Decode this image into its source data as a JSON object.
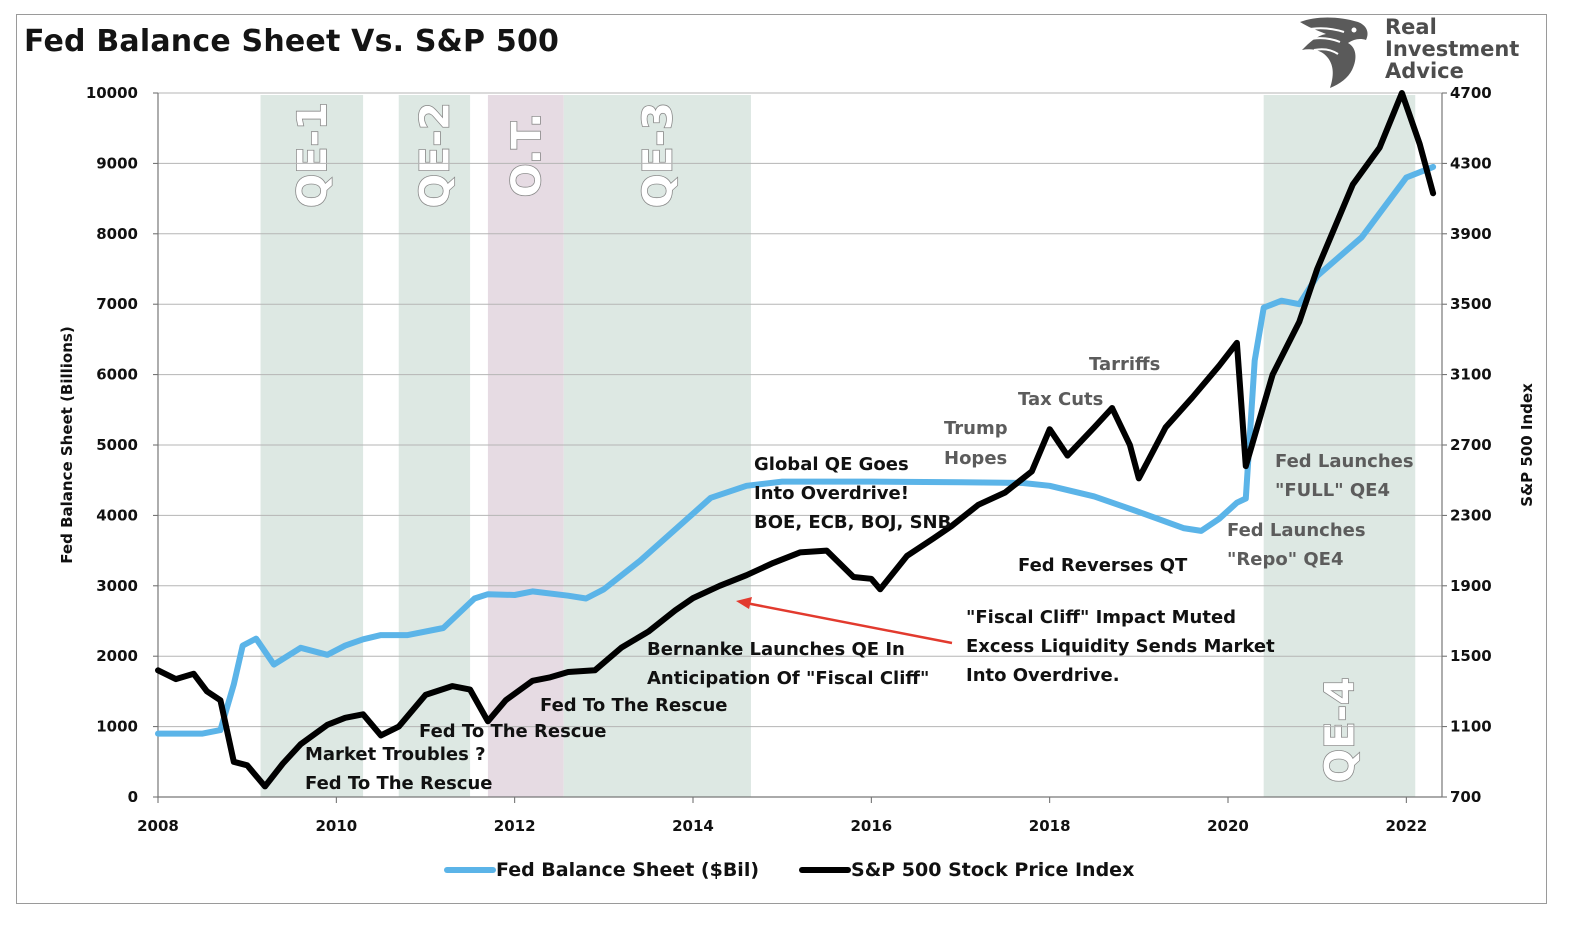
{
  "title": "Fed Balance Sheet Vs. S&P 500",
  "logo": {
    "lines": [
      "Real",
      "Investment",
      "Advice"
    ],
    "icon": "eagle-head-icon"
  },
  "colors": {
    "balance_sheet": "#5bb4e8",
    "sp500": "#000000",
    "qe_band": "#dde8e3",
    "ot_band": "#e6dbe3",
    "arrow": "#e23a2e",
    "grid": "#b5b5b5"
  },
  "legend": [
    {
      "label": "Fed Balance Sheet ($Bil)",
      "color": "#5bb4e8"
    },
    {
      "label": "S&P 500 Stock Price Index",
      "color": "#000000"
    }
  ],
  "chart_data": {
    "type": "line",
    "title": "Fed Balance Sheet Vs. S&P 500",
    "xlabel": "",
    "ylabel_left": "Fed Balance Sheet (Billions)",
    "ylabel_right": "S&P 500 Index",
    "xlim": [
      2008,
      2022.4
    ],
    "ylim_left": [
      0,
      10000
    ],
    "ylim_right": [
      700,
      4700
    ],
    "x_ticks": [
      "2008",
      "2010",
      "2012",
      "2014",
      "2016",
      "2018",
      "2020",
      "2022"
    ],
    "y_ticks_left": [
      "0",
      "1000",
      "2000",
      "3000",
      "4000",
      "5000",
      "6000",
      "7000",
      "8000",
      "9000",
      "10000"
    ],
    "y_ticks_right": [
      "700",
      "1100",
      "1500",
      "1900",
      "2300",
      "2700",
      "3100",
      "3500",
      "3900",
      "4300",
      "4700"
    ],
    "grid": true,
    "legend_position": "bottom",
    "bands": [
      {
        "label": "QE-1",
        "start": 2009.15,
        "end": 2010.3,
        "kind": "qe"
      },
      {
        "label": "QE-2",
        "start": 2010.7,
        "end": 2011.5,
        "kind": "qe"
      },
      {
        "label": "O.T.",
        "start": 2011.7,
        "end": 2012.55,
        "kind": "ot"
      },
      {
        "label": "QE-3",
        "start": 2012.55,
        "end": 2014.65,
        "kind": "qe"
      },
      {
        "label": "QE-4",
        "start": 2020.4,
        "end": 2022.1,
        "kind": "qe"
      }
    ],
    "series": [
      {
        "name": "Fed Balance Sheet ($Bil)",
        "axis": "left",
        "points": [
          [
            2008.0,
            900
          ],
          [
            2008.5,
            900
          ],
          [
            2008.7,
            950
          ],
          [
            2008.85,
            1600
          ],
          [
            2008.95,
            2150
          ],
          [
            2009.1,
            2250
          ],
          [
            2009.3,
            1880
          ],
          [
            2009.6,
            2120
          ],
          [
            2009.9,
            2020
          ],
          [
            2010.1,
            2150
          ],
          [
            2010.3,
            2240
          ],
          [
            2010.5,
            2300
          ],
          [
            2010.8,
            2300
          ],
          [
            2011.2,
            2400
          ],
          [
            2011.55,
            2820
          ],
          [
            2011.7,
            2880
          ],
          [
            2012.0,
            2870
          ],
          [
            2012.2,
            2920
          ],
          [
            2012.6,
            2860
          ],
          [
            2012.8,
            2820
          ],
          [
            2013.0,
            2950
          ],
          [
            2013.4,
            3350
          ],
          [
            2013.8,
            3800
          ],
          [
            2014.2,
            4250
          ],
          [
            2014.6,
            4420
          ],
          [
            2015.0,
            4480
          ],
          [
            2016.0,
            4480
          ],
          [
            2017.0,
            4470
          ],
          [
            2017.7,
            4460
          ],
          [
            2018.0,
            4420
          ],
          [
            2018.5,
            4270
          ],
          [
            2019.0,
            4050
          ],
          [
            2019.5,
            3820
          ],
          [
            2019.7,
            3780
          ],
          [
            2019.9,
            3950
          ],
          [
            2020.1,
            4180
          ],
          [
            2020.2,
            4240
          ],
          [
            2020.3,
            6200
          ],
          [
            2020.4,
            6950
          ],
          [
            2020.6,
            7050
          ],
          [
            2020.8,
            7000
          ],
          [
            2021.0,
            7400
          ],
          [
            2021.5,
            7950
          ],
          [
            2022.0,
            8800
          ],
          [
            2022.3,
            8950
          ]
        ]
      },
      {
        "name": "S&P 500 Stock Price Index",
        "axis": "right",
        "points": [
          [
            2008.0,
            1420
          ],
          [
            2008.2,
            1370
          ],
          [
            2008.4,
            1400
          ],
          [
            2008.55,
            1300
          ],
          [
            2008.7,
            1250
          ],
          [
            2008.85,
            900
          ],
          [
            2009.0,
            880
          ],
          [
            2009.2,
            760
          ],
          [
            2009.4,
            890
          ],
          [
            2009.6,
            1000
          ],
          [
            2009.9,
            1110
          ],
          [
            2010.1,
            1150
          ],
          [
            2010.3,
            1170
          ],
          [
            2010.5,
            1050
          ],
          [
            2010.7,
            1100
          ],
          [
            2011.0,
            1280
          ],
          [
            2011.3,
            1330
          ],
          [
            2011.5,
            1310
          ],
          [
            2011.7,
            1130
          ],
          [
            2011.9,
            1250
          ],
          [
            2012.2,
            1360
          ],
          [
            2012.4,
            1380
          ],
          [
            2012.6,
            1410
          ],
          [
            2012.9,
            1420
          ],
          [
            2013.2,
            1550
          ],
          [
            2013.5,
            1640
          ],
          [
            2013.8,
            1760
          ],
          [
            2014.0,
            1830
          ],
          [
            2014.3,
            1900
          ],
          [
            2014.6,
            1960
          ],
          [
            2014.9,
            2030
          ],
          [
            2015.2,
            2090
          ],
          [
            2015.5,
            2100
          ],
          [
            2015.8,
            1950
          ],
          [
            2016.0,
            1940
          ],
          [
            2016.1,
            1880
          ],
          [
            2016.4,
            2070
          ],
          [
            2016.7,
            2170
          ],
          [
            2016.9,
            2240
          ],
          [
            2017.2,
            2360
          ],
          [
            2017.5,
            2430
          ],
          [
            2017.8,
            2550
          ],
          [
            2018.0,
            2790
          ],
          [
            2018.2,
            2640
          ],
          [
            2018.5,
            2800
          ],
          [
            2018.7,
            2910
          ],
          [
            2018.9,
            2700
          ],
          [
            2019.0,
            2510
          ],
          [
            2019.3,
            2800
          ],
          [
            2019.6,
            2970
          ],
          [
            2019.9,
            3150
          ],
          [
            2020.1,
            3280
          ],
          [
            2020.2,
            2580
          ],
          [
            2020.5,
            3100
          ],
          [
            2020.8,
            3400
          ],
          [
            2021.0,
            3700
          ],
          [
            2021.4,
            4180
          ],
          [
            2021.7,
            4390
          ],
          [
            2021.95,
            4700
          ],
          [
            2022.15,
            4410
          ],
          [
            2022.3,
            4130
          ]
        ]
      }
    ],
    "annotations": [
      {
        "lines": [
          "QE-1"
        ],
        "kind": "band"
      },
      {
        "lines": [
          "Market Troubles ?",
          "Fed To The Rescue"
        ],
        "kind": "dark"
      },
      {
        "lines": [
          "Fed To The Rescue"
        ],
        "kind": "dark"
      },
      {
        "lines": [
          "Fed To The Rescue"
        ],
        "kind": "dark"
      },
      {
        "lines": [
          "Bernanke Launches QE In",
          "Anticipation Of \"Fiscal Cliff\""
        ],
        "kind": "dark"
      },
      {
        "lines": [
          "Global QE Goes",
          "Into Overdrive!",
          "BOE, ECB, BOJ, SNB"
        ],
        "kind": "dark"
      },
      {
        "lines": [
          "Trump",
          "Hopes"
        ],
        "kind": "gray"
      },
      {
        "lines": [
          "Tax Cuts"
        ],
        "kind": "gray"
      },
      {
        "lines": [
          "Tarriffs"
        ],
        "kind": "gray"
      },
      {
        "lines": [
          "Fed Reverses QT"
        ],
        "kind": "dark"
      },
      {
        "lines": [
          "\"Fiscal Cliff\" Impact Muted",
          "Excess Liquidity Sends Market",
          "Into Overdrive."
        ],
        "kind": "dark"
      },
      {
        "lines": [
          "Fed Launches",
          "\"FULL\" QE4"
        ],
        "kind": "gray"
      },
      {
        "lines": [
          "Fed Launches",
          "\"Repo\" QE4"
        ],
        "kind": "gray"
      }
    ]
  }
}
